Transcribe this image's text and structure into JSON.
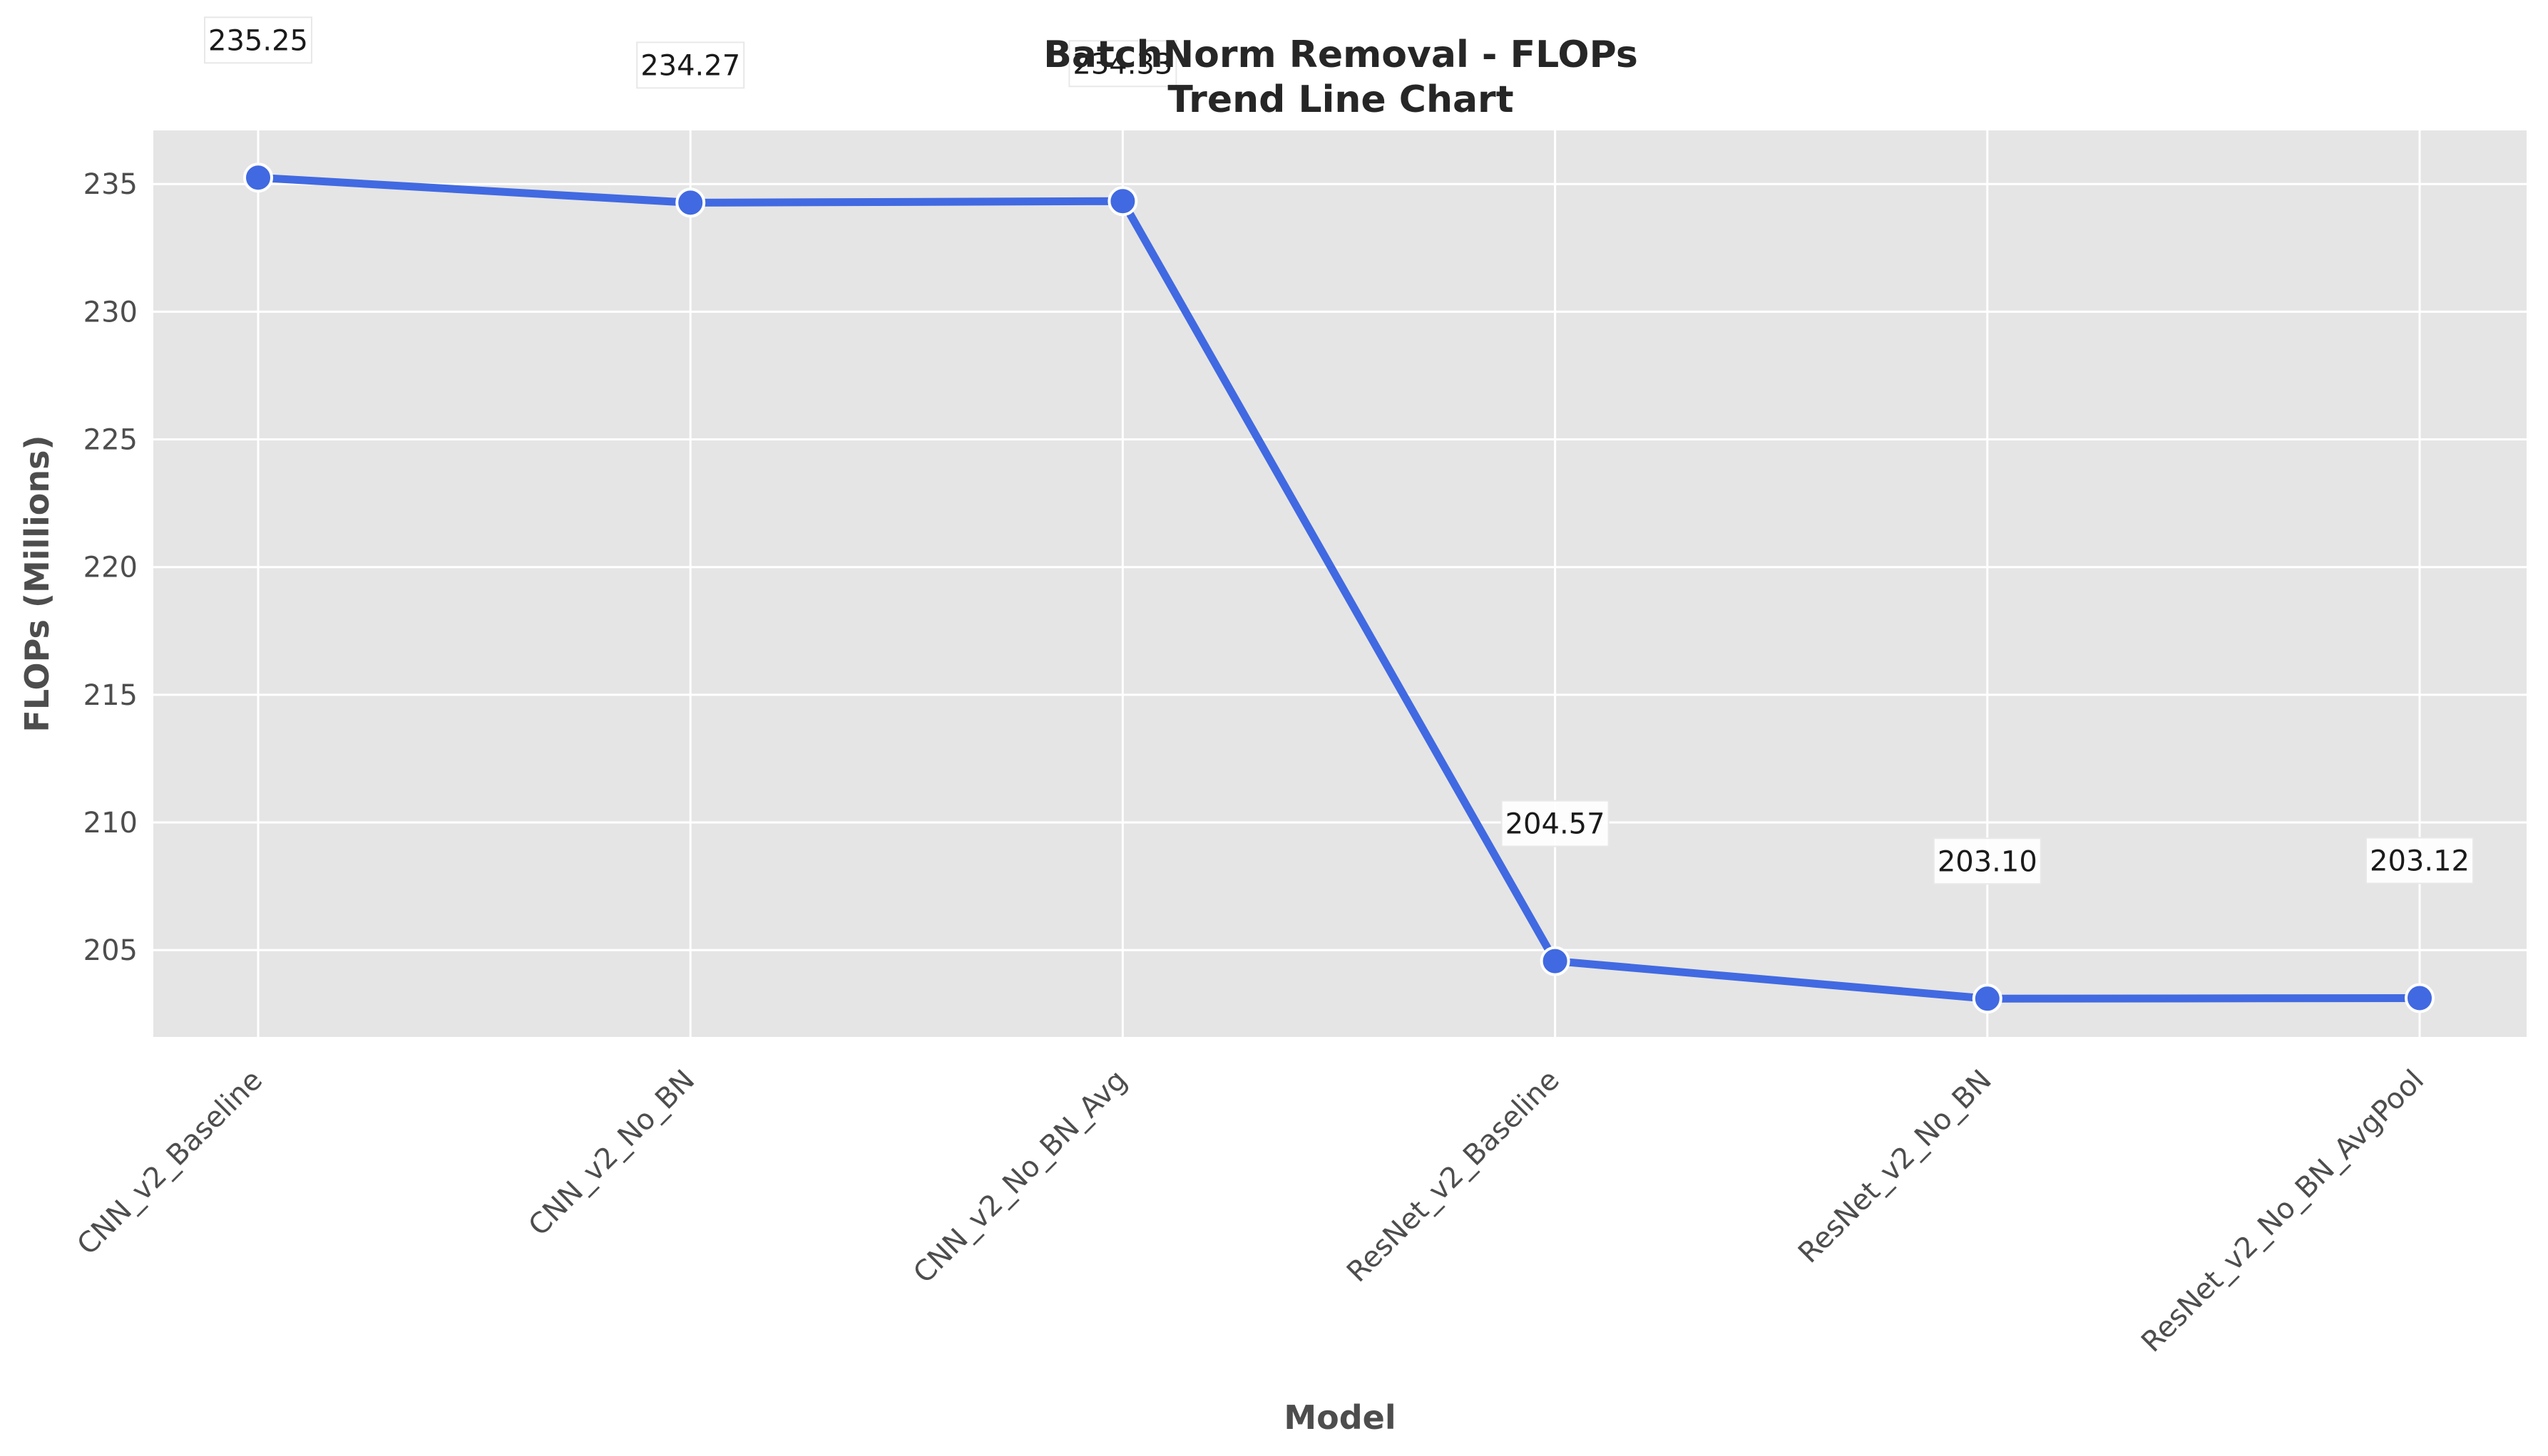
{
  "chart_data": {
    "type": "line",
    "title": "BatchNorm Removal - FLOPs",
    "subtitle": "Trend Line Chart",
    "xlabel": "Model",
    "ylabel": "FLOPs (Millions)",
    "categories": [
      "CNN_v2_Baseline",
      "CNN_v2_No_BN",
      "CNN_v2_No_BN_Avg",
      "ResNet_v2_Baseline",
      "ResNet_v2_No_BN",
      "ResNet_v2_No_BN_AvgPool"
    ],
    "values": [
      235.25,
      234.27,
      234.33,
      204.57,
      203.1,
      203.12
    ],
    "data_labels": [
      "235.25",
      "234.27",
      "234.33",
      "204.57",
      "203.10",
      "203.12"
    ],
    "ylim": [
      201.6,
      237.1
    ],
    "yticks": [
      205,
      210,
      215,
      220,
      225,
      230,
      235
    ],
    "grid": true,
    "line_color": "#4169e1",
    "background_color": "#e5e5e5",
    "grid_color": "#ffffff"
  }
}
